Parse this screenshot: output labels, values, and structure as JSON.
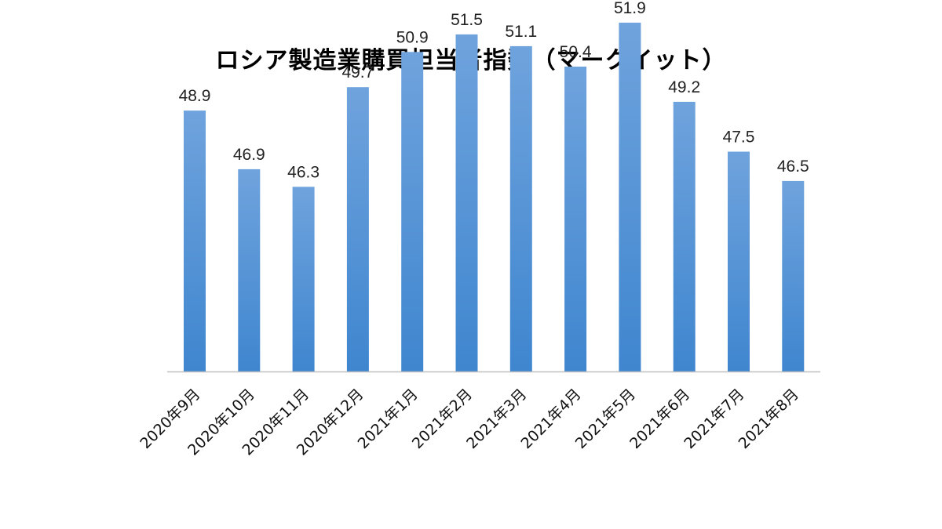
{
  "chart_data": {
    "type": "bar",
    "title": "ロシア製造業購買担当者指数（マークイット）",
    "xlabel": "",
    "ylabel": "",
    "categories": [
      "2020年9月",
      "2020年10月",
      "2020年11月",
      "2020年12月",
      "2021年1月",
      "2021年2月",
      "2021年3月",
      "2021年4月",
      "2021年5月",
      "2021年6月",
      "2021年7月",
      "2021年8月"
    ],
    "values": [
      48.9,
      46.9,
      46.3,
      49.7,
      50.9,
      51.5,
      51.1,
      50.4,
      51.9,
      49.2,
      47.5,
      46.5
    ],
    "value_labels": [
      "48.9",
      "46.9",
      "46.3",
      "49.7",
      "50.9",
      "51.5",
      "51.1",
      "50.4",
      "51.9",
      "49.2",
      "47.5",
      "46.5"
    ],
    "ylim": [
      40,
      53
    ],
    "grid": false,
    "legend": "none",
    "colors": {
      "bar_top": "#6fa3dd",
      "bar_bottom": "#3f86cf",
      "axis": "#bfbfbf"
    }
  }
}
